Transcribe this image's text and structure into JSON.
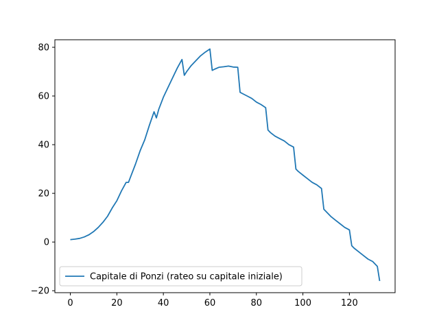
{
  "chart_data": {
    "type": "line",
    "title": "",
    "xlabel": "",
    "ylabel": "",
    "xlim": [
      -6.65,
      139.65
    ],
    "ylim": [
      -20.8,
      83.1
    ],
    "x_ticks": [
      0,
      20,
      40,
      60,
      80,
      100,
      120
    ],
    "x_tick_labels": [
      "0",
      "20",
      "40",
      "60",
      "80",
      "100",
      "120"
    ],
    "y_ticks": [
      -20,
      0,
      20,
      40,
      60,
      80
    ],
    "y_tick_labels": [
      "−20",
      "0",
      "20",
      "40",
      "60",
      "80"
    ],
    "grid": false,
    "legend_position": "lower-left",
    "series": [
      {
        "name": "Capitale di Ponzi (rateo su capitale iniziale)",
        "color": "#1f77b4",
        "x": [
          0,
          2,
          4,
          6,
          8,
          10,
          12,
          14,
          16,
          18,
          20,
          22,
          24,
          25,
          26,
          28,
          30,
          32,
          34,
          36,
          37,
          38,
          40,
          42,
          44,
          46,
          48,
          49,
          50,
          52,
          54,
          56,
          58,
          60,
          61,
          62,
          64,
          66,
          68,
          70,
          72,
          73,
          74,
          76,
          78,
          80,
          82,
          84,
          85,
          86,
          88,
          90,
          92,
          94,
          96,
          97,
          98,
          100,
          102,
          104,
          106,
          108,
          109,
          110,
          112,
          114,
          116,
          118,
          120,
          121,
          122,
          124,
          126,
          128,
          130,
          132,
          133
        ],
        "y": [
          1.0,
          1.2,
          1.5,
          2.1,
          3.0,
          4.3,
          6.0,
          8.1,
          10.6,
          14.0,
          17.0,
          21.0,
          24.5,
          24.5,
          27.0,
          32.0,
          37.5,
          42.0,
          48.0,
          53.5,
          51.0,
          54.5,
          59.5,
          63.5,
          67.5,
          71.5,
          75.0,
          68.5,
          70.0,
          72.5,
          74.5,
          76.5,
          78.0,
          79.3,
          70.5,
          71.0,
          71.8,
          72.0,
          72.3,
          71.9,
          71.8,
          61.5,
          61.0,
          60.0,
          59.0,
          57.5,
          56.5,
          55.2,
          46.0,
          45.0,
          43.5,
          42.5,
          41.5,
          40.0,
          39.0,
          30.0,
          29.0,
          27.5,
          26.0,
          24.5,
          23.5,
          22.0,
          13.5,
          12.5,
          10.5,
          9.0,
          7.5,
          6.0,
          5.0,
          -1.5,
          -2.5,
          -4.0,
          -5.5,
          -7.0,
          -8.0,
          -10.0,
          -16.0
        ]
      }
    ]
  }
}
